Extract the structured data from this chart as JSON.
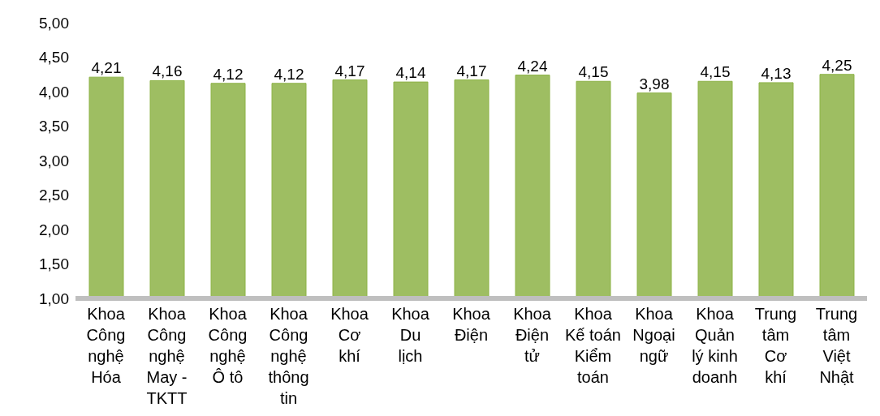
{
  "chart_data": {
    "type": "bar",
    "categories": [
      "Khoa\nCông\nnghệ\nHóa",
      "Khoa\nCông\nnghệ\nMay -\nTKTT",
      "Khoa\nCông\nnghệ\nÔ tô",
      "Khoa\nCông\nnghệ\nthông\ntin",
      "Khoa\nCơ\nkhí",
      "Khoa\nDu\nlịch",
      "Khoa\nĐiện",
      "Khoa\nĐiện\ntử",
      "Khoa\nKế toán\nKiểm\ntoán",
      "Khoa\nNgoại\nngữ",
      "Khoa\nQuản\nlý kinh\ndoanh",
      "Trung\ntâm\nCơ\nkhí",
      "Trung\ntâm\nViệt\nNhật"
    ],
    "values": [
      4.21,
      4.16,
      4.12,
      4.12,
      4.17,
      4.14,
      4.17,
      4.24,
      4.15,
      3.98,
      4.15,
      4.13,
      4.25
    ],
    "color": "#8db347",
    "ylim": [
      1,
      5
    ],
    "yticks": [
      {
        "value": 1,
        "label": "1,00"
      },
      {
        "value": 1.5,
        "label": "1,50"
      },
      {
        "value": 2,
        "label": "2,00"
      },
      {
        "value": 2.5,
        "label": "2,50"
      },
      {
        "value": 3,
        "label": "3,00"
      },
      {
        "value": 3.5,
        "label": "3,50"
      },
      {
        "value": 4,
        "label": "4,00"
      },
      {
        "value": 4.5,
        "label": "4,50"
      },
      {
        "value": 5,
        "label": "5,00"
      }
    ],
    "value_labels": [
      "4,21",
      "4,16",
      "4,12",
      "4,12",
      "4,17",
      "4,14",
      "4,17",
      "4,24",
      "4,15",
      "3,98",
      "4,15",
      "4,13",
      "4,25"
    ],
    "grid": false
  }
}
